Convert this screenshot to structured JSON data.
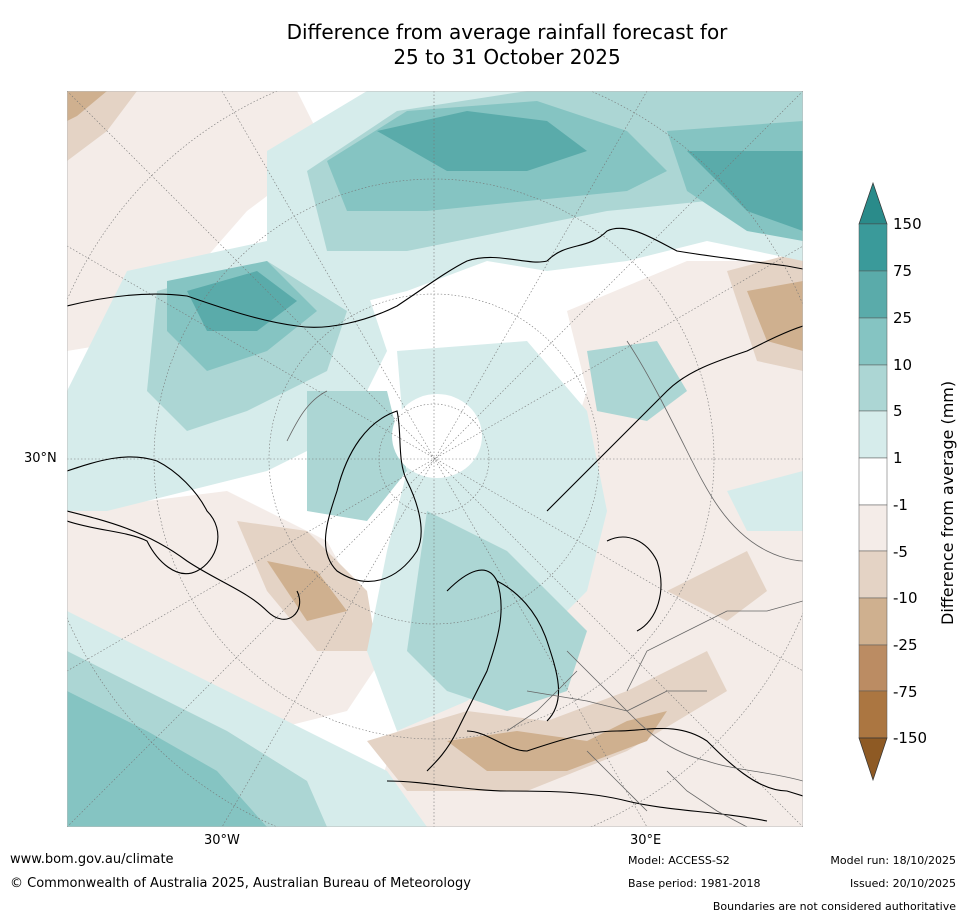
{
  "title": {
    "line1": "Difference from average rainfall forecast for",
    "line2": "25 to 31 October 2025"
  },
  "map": {
    "labels": {
      "lat": "30°N",
      "lon_w": "30°W",
      "lon_e": "30°E"
    },
    "colors": {
      "c150": "#2a8b8a",
      "c75": "#3a9a9a",
      "c25": "#5aabaa",
      "c10": "#85c4c2",
      "c5": "#acd6d4",
      "c1": "#d6eceb",
      "neutral": "#ffffff",
      "n1": "#f4ece8",
      "n5": "#e4d3c5",
      "n10": "#cfb08f",
      "n25": "#bb8c63",
      "n75": "#ab7641",
      "n150": "#8e5a24"
    }
  },
  "colorbar": {
    "label": "Difference from average (mm)",
    "ticks": [
      "150",
      "75",
      "25",
      "10",
      "5",
      "1",
      "-1",
      "-5",
      "-10",
      "-25",
      "-75",
      "-150"
    ]
  },
  "footer": {
    "url": "www.bom.gov.au/climate",
    "copyright": "© Commonwealth of Australia 2025, Australian Bureau of Meteorology",
    "model": "Model: ACCESS-S2",
    "base_period": "Base period: 1981-2018",
    "model_run": "Model run: 18/10/2025",
    "issued": "Issued: 20/10/2025",
    "disclaimer": "Boundaries are not considered authoritative"
  }
}
